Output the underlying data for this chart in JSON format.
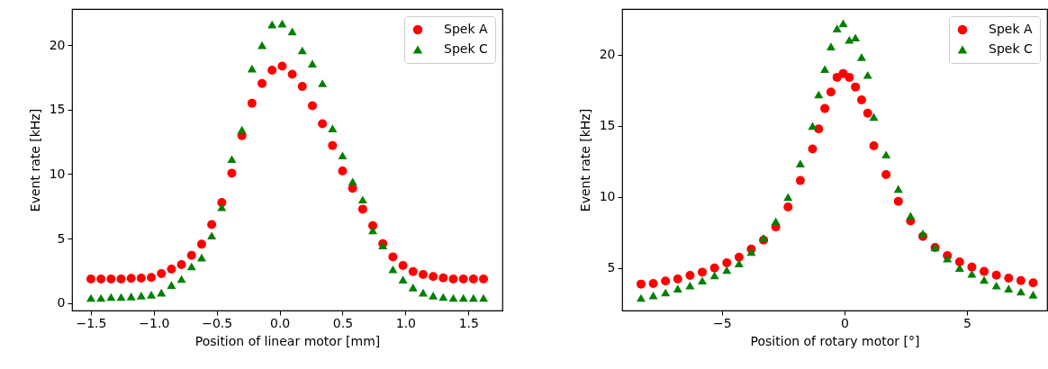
{
  "chart_data": [
    {
      "type": "scatter",
      "xlabel": "Position of linear motor [mm]",
      "ylabel": "Event rate [kHz]",
      "xlim": [
        -1.65,
        1.77
      ],
      "ylim": [
        -0.58,
        22.8
      ],
      "xticks": [
        {
          "value": -1.5,
          "label": "−1.5"
        },
        {
          "value": -1,
          "label": "−1.0"
        },
        {
          "value": -0.5,
          "label": "−0.5"
        },
        {
          "value": 0,
          "label": "0.0"
        },
        {
          "value": 0.5,
          "label": "0.5"
        },
        {
          "value": 1,
          "label": "1.0"
        },
        {
          "value": 1.5,
          "label": "1.5"
        }
      ],
      "yticks": [
        0,
        5,
        10,
        15,
        20
      ],
      "legend": "top right",
      "x": [
        -1.5,
        -1.42,
        -1.34,
        -1.26,
        -1.18,
        -1.1,
        -1.02,
        -0.94,
        -0.86,
        -0.78,
        -0.7,
        -0.62,
        -0.54,
        -0.46,
        -0.38,
        -0.3,
        -0.22,
        -0.14,
        -0.06,
        0.02,
        0.1,
        0.18,
        0.26,
        0.34,
        0.42,
        0.5,
        0.58,
        0.66,
        0.74,
        0.82,
        0.9,
        0.98,
        1.06,
        1.14,
        1.22,
        1.3,
        1.38,
        1.46,
        1.54,
        1.62
      ],
      "series": [
        {
          "name": "Spek A",
          "color": "#ff0000",
          "marker": "circle",
          "values": [
            1.86,
            1.86,
            1.86,
            1.86,
            1.91,
            1.93,
            1.98,
            2.28,
            2.63,
            2.98,
            3.7,
            4.56,
            6.09,
            7.79,
            10.07,
            12.98,
            15.49,
            17.02,
            18.05,
            18.37,
            17.74,
            16.79,
            15.3,
            13.9,
            12.21,
            10.24,
            8.89,
            7.28,
            6.0,
            4.61,
            3.58,
            2.91,
            2.44,
            2.21,
            2.05,
            1.95,
            1.86,
            1.86,
            1.86,
            1.86
          ]
        },
        {
          "name": "Spek C",
          "color": "#008000",
          "marker": "triangle",
          "values": [
            0.4,
            0.4,
            0.47,
            0.47,
            0.51,
            0.58,
            0.65,
            0.81,
            1.4,
            1.86,
            2.84,
            3.53,
            5.23,
            7.44,
            11.16,
            13.44,
            18.19,
            20.0,
            21.6,
            21.68,
            21.06,
            19.59,
            18.57,
            17.04,
            13.54,
            11.44,
            9.42,
            8.02,
            5.63,
            4.47,
            2.61,
            1.82,
            1.21,
            0.81,
            0.58,
            0.47,
            0.4,
            0.4,
            0.4,
            0.4
          ]
        }
      ]
    },
    {
      "type": "scatter",
      "xlabel": "Position of rotary motor [°]",
      "ylabel": "Event rate [kHz]",
      "xlim": [
        -9.07,
        8.27
      ],
      "ylim": [
        2.0,
        23.23
      ],
      "xticks": [
        {
          "value": -5,
          "label": "−5"
        },
        0,
        5
      ],
      "yticks": [
        5,
        10,
        15,
        20
      ],
      "legend": "top right",
      "x": [
        -8.3,
        -7.8,
        -7.3,
        -6.8,
        -6.3,
        -5.8,
        -5.3,
        -4.8,
        -4.3,
        -3.8,
        -3.3,
        -2.8,
        -2.3,
        -1.8,
        -1.3,
        -1.05,
        -0.8,
        -0.55,
        -0.3,
        -0.05,
        0.2,
        0.45,
        0.7,
        0.95,
        1.2,
        1.7,
        2.2,
        2.7,
        3.2,
        3.7,
        4.2,
        4.7,
        5.2,
        5.7,
        6.2,
        6.7,
        7.2,
        7.7
      ],
      "series": [
        {
          "name": "Spek A",
          "color": "#ff0000",
          "marker": "circle",
          "values": [
            3.86,
            3.9,
            4.08,
            4.22,
            4.47,
            4.7,
            5.0,
            5.36,
            5.76,
            6.33,
            6.96,
            7.88,
            9.29,
            11.15,
            13.37,
            14.78,
            16.22,
            17.38,
            18.42,
            18.69,
            18.42,
            17.74,
            16.83,
            15.9,
            13.6,
            11.57,
            9.69,
            8.3,
            7.22,
            6.44,
            5.87,
            5.42,
            5.06,
            4.75,
            4.49,
            4.28,
            4.11,
            3.95
          ]
        },
        {
          "name": "Spek C",
          "color": "#008000",
          "marker": "triangle",
          "values": [
            2.89,
            3.06,
            3.27,
            3.54,
            3.76,
            4.11,
            4.47,
            4.85,
            5.32,
            6.12,
            7.12,
            8.28,
            9.99,
            12.35,
            15.0,
            17.21,
            19.0,
            20.59,
            21.86,
            22.22,
            21.06,
            21.22,
            19.85,
            18.59,
            15.63,
            12.98,
            10.56,
            8.66,
            7.43,
            6.44,
            5.66,
            5.0,
            4.58,
            4.16,
            3.76,
            3.54,
            3.33,
            3.12
          ]
        }
      ]
    }
  ]
}
